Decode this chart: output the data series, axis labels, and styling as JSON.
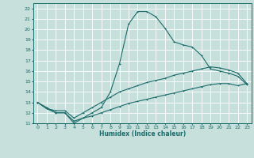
{
  "xlabel": "Humidex (Indice chaleur)",
  "bg_color": "#c8e0dc",
  "grid_color": "#ffffff",
  "line_color": "#1a6b6b",
  "xlim": [
    -0.5,
    23.5
  ],
  "ylim": [
    11,
    22.5
  ],
  "xticks": [
    0,
    1,
    2,
    3,
    4,
    5,
    6,
    7,
    8,
    9,
    10,
    11,
    12,
    13,
    14,
    15,
    16,
    17,
    18,
    19,
    20,
    21,
    22,
    23
  ],
  "yticks": [
    11,
    12,
    13,
    14,
    15,
    16,
    17,
    18,
    19,
    20,
    21,
    22
  ],
  "series1_x": [
    0,
    1,
    2,
    3,
    4,
    5,
    6,
    7,
    8,
    9,
    10,
    11,
    12,
    13,
    14,
    15,
    16,
    17,
    18,
    19,
    20,
    21,
    22,
    23
  ],
  "series1_y": [
    13,
    12.5,
    12,
    12,
    11,
    11.5,
    12,
    12.5,
    14,
    16.7,
    20.5,
    21.7,
    21.7,
    21.2,
    20.1,
    18.8,
    18.5,
    18.3,
    17.5,
    16.2,
    16.0,
    15.8,
    15.5,
    14.7
  ],
  "series2_x": [
    0,
    1,
    2,
    3,
    4,
    5,
    6,
    7,
    8,
    9,
    10,
    11,
    12,
    13,
    14,
    15,
    16,
    17,
    18,
    19,
    20,
    21,
    22,
    23
  ],
  "series2_y": [
    13,
    12.4,
    12.2,
    12.2,
    11.5,
    12.0,
    12.5,
    13.0,
    13.5,
    14.0,
    14.3,
    14.6,
    14.9,
    15.1,
    15.3,
    15.6,
    15.8,
    16.0,
    16.2,
    16.4,
    16.3,
    16.1,
    15.8,
    14.8
  ],
  "series3_x": [
    0,
    1,
    2,
    3,
    4,
    5,
    6,
    7,
    8,
    9,
    10,
    11,
    12,
    13,
    14,
    15,
    16,
    17,
    18,
    19,
    20,
    21,
    22,
    23
  ],
  "series3_y": [
    13,
    12.4,
    12.0,
    12.0,
    11.2,
    11.5,
    11.7,
    12.0,
    12.3,
    12.6,
    12.9,
    13.1,
    13.3,
    13.5,
    13.7,
    13.9,
    14.1,
    14.3,
    14.5,
    14.7,
    14.8,
    14.8,
    14.6,
    14.8
  ]
}
